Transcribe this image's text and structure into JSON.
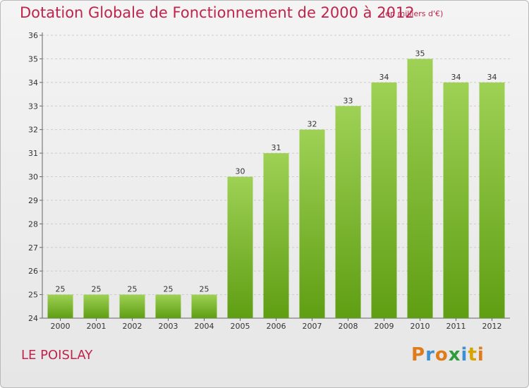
{
  "header": {
    "title": "Dotation Globale de Fonctionnement de 2000 à 2012",
    "subtitle": "(en milliers d'€)"
  },
  "commune": "LE POISLAY",
  "logo": {
    "letters": [
      "P",
      "r",
      "o",
      "x",
      "i",
      "t",
      "i"
    ],
    "text": "Proxiti"
  },
  "colors": {
    "title": "#c0234b",
    "bar_top": "#9ed155",
    "bar_bottom": "#5f9e13",
    "grid": "#cccccc"
  },
  "chart_data": {
    "type": "bar",
    "categories": [
      "2000",
      "2001",
      "2002",
      "2003",
      "2004",
      "2005",
      "2006",
      "2007",
      "2008",
      "2009",
      "2010",
      "2011",
      "2012"
    ],
    "values": [
      25,
      25,
      25,
      25,
      25,
      30,
      31,
      32,
      33,
      34,
      35,
      34,
      34
    ],
    "ylim": [
      24,
      36
    ],
    "yticks": [
      24,
      25,
      26,
      27,
      28,
      29,
      30,
      31,
      32,
      33,
      34,
      35,
      36
    ],
    "grid": true,
    "data_labels": true,
    "title": "Dotation Globale de Fonctionnement de 2000 à 2012",
    "subtitle": "(en milliers d'€)"
  }
}
